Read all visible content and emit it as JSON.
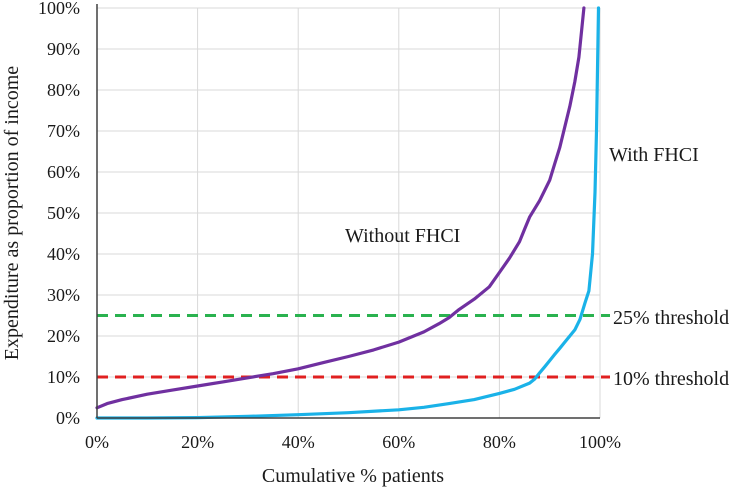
{
  "chart_data": {
    "type": "line",
    "title": "",
    "xlabel": "Cumulative % patients",
    "ylabel": "Expenditure as proportion of income",
    "xlim": [
      0,
      100
    ],
    "ylim": [
      0,
      100
    ],
    "x_ticks": [
      0,
      20,
      40,
      60,
      80,
      100
    ],
    "x_tick_labels": [
      "0%",
      "20%",
      "40%",
      "60%",
      "80%",
      "100%"
    ],
    "y_ticks": [
      0,
      10,
      20,
      30,
      40,
      50,
      60,
      70,
      80,
      90,
      100
    ],
    "y_tick_labels": [
      "0%",
      "10%",
      "20%",
      "30%",
      "40%",
      "50%",
      "60%",
      "70%",
      "80%",
      "90%",
      "100%"
    ],
    "grid": true,
    "series": [
      {
        "name": "Without  FHCI",
        "color": "#7030a0",
        "points": [
          [
            0,
            2.5
          ],
          [
            2,
            3.5
          ],
          [
            5,
            4.5
          ],
          [
            10,
            5.8
          ],
          [
            15,
            6.8
          ],
          [
            20,
            7.8
          ],
          [
            25,
            8.8
          ],
          [
            30,
            9.8
          ],
          [
            35,
            10.8
          ],
          [
            40,
            12.0
          ],
          [
            45,
            13.5
          ],
          [
            50,
            15.0
          ],
          [
            55,
            16.6
          ],
          [
            60,
            18.5
          ],
          [
            65,
            21.0
          ],
          [
            68,
            23.0
          ],
          [
            70,
            24.5
          ],
          [
            72,
            26.5
          ],
          [
            75,
            29.0
          ],
          [
            78,
            32.0
          ],
          [
            80,
            35.5
          ],
          [
            82,
            39.0
          ],
          [
            84,
            43.0
          ],
          [
            85,
            46.0
          ],
          [
            86,
            49.0
          ],
          [
            88,
            53.0
          ],
          [
            90,
            58.0
          ],
          [
            91,
            62.0
          ],
          [
            92,
            66.0
          ],
          [
            93,
            71.0
          ],
          [
            94,
            76.0
          ],
          [
            95,
            82.0
          ],
          [
            95.8,
            88.0
          ],
          [
            96.3,
            94.0
          ],
          [
            96.8,
            100.0
          ]
        ]
      },
      {
        "name": "With FHCI",
        "color": "#1ab2e8",
        "points": [
          [
            0,
            0.0
          ],
          [
            10,
            0.0
          ],
          [
            20,
            0.1
          ],
          [
            30,
            0.4
          ],
          [
            40,
            0.8
          ],
          [
            50,
            1.3
          ],
          [
            60,
            2.0
          ],
          [
            65,
            2.6
          ],
          [
            70,
            3.5
          ],
          [
            75,
            4.5
          ],
          [
            80,
            6.0
          ],
          [
            83,
            7.0
          ],
          [
            86,
            8.5
          ],
          [
            87,
            9.5
          ],
          [
            88,
            11.0
          ],
          [
            89,
            12.5
          ],
          [
            90,
            14.0
          ],
          [
            91,
            15.5
          ],
          [
            92,
            17.0
          ],
          [
            93,
            18.5
          ],
          [
            94,
            20.0
          ],
          [
            95,
            21.5
          ],
          [
            96,
            24.0
          ],
          [
            97,
            28.0
          ],
          [
            97.8,
            31.0
          ],
          [
            98.5,
            40.0
          ],
          [
            99.0,
            55.0
          ],
          [
            99.3,
            70.0
          ],
          [
            99.5,
            85.0
          ],
          [
            99.7,
            100.0
          ]
        ]
      }
    ],
    "thresholds": [
      {
        "label": "25% threshold",
        "value": 25,
        "color": "#2ab24f"
      },
      {
        "label": "10% threshold",
        "value": 10,
        "color": "#e02020"
      }
    ],
    "annotations": [
      {
        "text": "Without  FHCI",
        "series": "Without  FHCI"
      },
      {
        "text": "With FHCI",
        "series": "With FHCI"
      }
    ]
  }
}
